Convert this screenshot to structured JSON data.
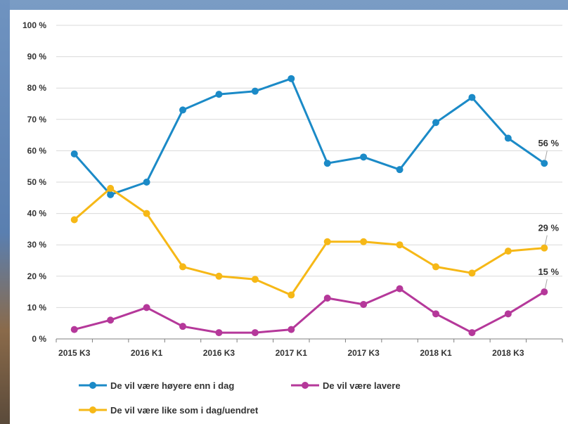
{
  "chart_data": {
    "type": "line",
    "x": [
      "2015 K3",
      "2015 K4",
      "2016 K1",
      "2016 K2",
      "2016 K3",
      "2016 K4",
      "2017 K1",
      "2017 K2",
      "2017 K3",
      "2017 K4",
      "2018 K1",
      "2018 K2",
      "2018 K3",
      "2018 K4"
    ],
    "x_tick_labels": [
      "2015 K3",
      "2016 K1",
      "2016 K3",
      "2017 K1",
      "2017 K3",
      "2018 K1",
      "2018 K3"
    ],
    "y_tick_labels": [
      "0 %",
      "10 %",
      "20 %",
      "30 %",
      "40 %",
      "50 %",
      "60 %",
      "70 %",
      "80 %",
      "90 %",
      "100 %"
    ],
    "ylim": [
      0,
      100
    ],
    "grid": true,
    "legend_position": "bottom",
    "series": [
      {
        "name": "De vil være høyere enn i dag",
        "color": "#1b8ac7",
        "values": [
          59,
          46,
          50,
          73,
          78,
          79,
          83,
          56,
          58,
          54,
          69,
          77,
          64,
          56
        ],
        "end_label": "56 %"
      },
      {
        "name": "De vil være lavere",
        "color": "#b5389a",
        "values": [
          3,
          6,
          10,
          4,
          2,
          2,
          3,
          13,
          11,
          16,
          8,
          2,
          8,
          15
        ],
        "end_label": "15 %"
      },
      {
        "name": "De vil være like som i  dag/uendret",
        "color": "#f6b817",
        "values": [
          38,
          48,
          40,
          23,
          20,
          19,
          14,
          31,
          31,
          30,
          23,
          21,
          28,
          29
        ],
        "end_label": "29 %"
      }
    ]
  }
}
